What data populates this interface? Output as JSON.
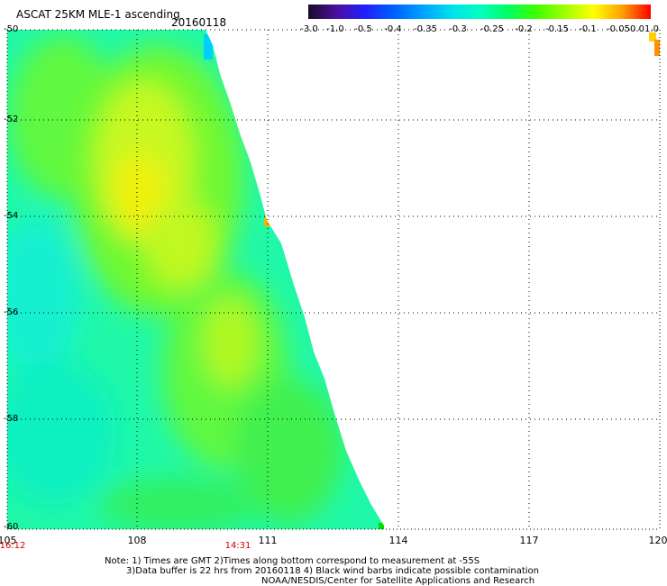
{
  "title": "ASCAT 25KM MLE-1 ascending",
  "date": "20160118",
  "colorbar": {
    "labels": [
      "-3.0",
      "-1.0",
      "-0.5",
      "-0.4",
      "-0.35",
      "-0.3",
      "-0.25",
      "-0.2",
      "-0.15",
      "-0.1",
      "-0.05",
      "0.0",
      "1.0"
    ],
    "colors": [
      "#1a0a2a",
      "#4a0fa0",
      "#2020ff",
      "#0060ff",
      "#00a0ff",
      "#00e0f0",
      "#00ffc0",
      "#00ff60",
      "#40ff00",
      "#a0ff00",
      "#ffff00",
      "#ffa000",
      "#ff0000"
    ]
  },
  "map": {
    "latitudes": [
      "-50",
      "-52",
      "-54",
      "-56",
      "-58",
      "-60"
    ],
    "longitudes": [
      "105",
      "108",
      "111",
      "114",
      "117",
      "120"
    ],
    "times": [
      "16:12",
      "14:31"
    ]
  },
  "notes": {
    "line1": "Note: 1) Times are GMT 2)Times along bottom correspond to measurement at -55S",
    "line2": "3)Data buffer is 22 hrs from 20160118 4) Black wind barbs indicate possible contamination",
    "line3": "NOAA/NESDIS/Center for Satellite Applications and Research"
  }
}
